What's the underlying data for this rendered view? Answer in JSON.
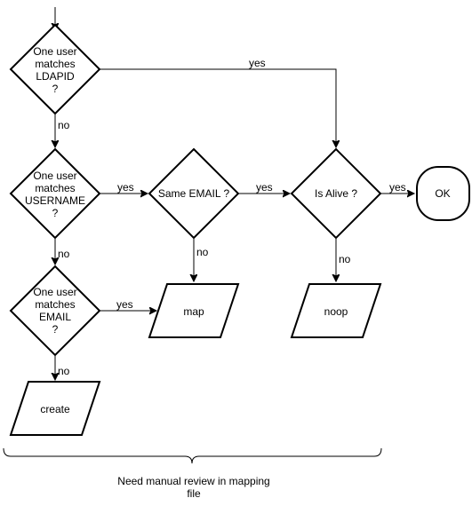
{
  "diagram": {
    "nodes": {
      "ldapid": {
        "lines": [
          "One user",
          "matches",
          "LDAPID",
          "?"
        ]
      },
      "username": {
        "lines": [
          "One user",
          "matches",
          "USERNAME",
          "?"
        ]
      },
      "email": {
        "lines": [
          "One user",
          "matches",
          "EMAIL",
          "?"
        ]
      },
      "same_email": {
        "label": "Same EMAIL ?"
      },
      "is_alive": {
        "label": "Is Alive ?"
      },
      "ok": {
        "label": "OK"
      },
      "map": {
        "label": "map"
      },
      "noop": {
        "label": "noop"
      },
      "create": {
        "label": "create"
      }
    },
    "edge_labels": {
      "ldapid_yes": "yes",
      "ldapid_no": "no",
      "username_yes": "yes",
      "username_no": "no",
      "email_yes": "yes",
      "email_no": "no",
      "same_email_yes": "yes",
      "same_email_no": "no",
      "is_alive_yes": "yes",
      "is_alive_no": "no"
    },
    "brace_label_lines": [
      "Need manual review in mapping",
      "file"
    ]
  }
}
